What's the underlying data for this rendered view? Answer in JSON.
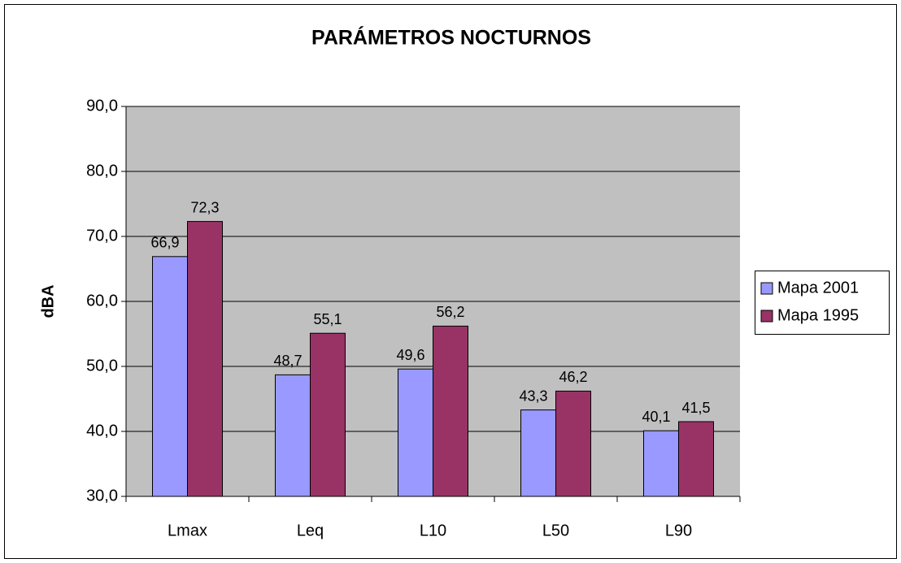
{
  "chart_data": {
    "type": "bar",
    "title": "PARÁMETROS NOCTURNOS",
    "y_label": "dBA",
    "categories": [
      "Lmax",
      "Leq",
      "L10",
      "L50",
      "L90"
    ],
    "series": [
      {
        "name": "Mapa 2001",
        "color": "#9999ff",
        "values": [
          66.9,
          48.7,
          49.6,
          43.3,
          40.1
        ],
        "value_labels": [
          "66,9",
          "48,7",
          "49,6",
          "43,3",
          "40,1"
        ]
      },
      {
        "name": "Mapa 1995",
        "color": "#993366",
        "values": [
          72.3,
          55.1,
          56.2,
          46.2,
          41.5
        ],
        "value_labels": [
          "72,3",
          "55,1",
          "56,2",
          "46,2",
          "41,5"
        ]
      }
    ],
    "ylim": [
      30,
      90
    ],
    "yticks": [
      {
        "value": 30,
        "label": "30,0"
      },
      {
        "value": 40,
        "label": "40,0"
      },
      {
        "value": 50,
        "label": "50,0"
      },
      {
        "value": 60,
        "label": "60,0"
      },
      {
        "value": 70,
        "label": "70,0"
      },
      {
        "value": 80,
        "label": "80,0"
      },
      {
        "value": 90,
        "label": "90,0"
      }
    ],
    "grid": true,
    "legend": "right",
    "plot_background": "#c0c0c0"
  }
}
